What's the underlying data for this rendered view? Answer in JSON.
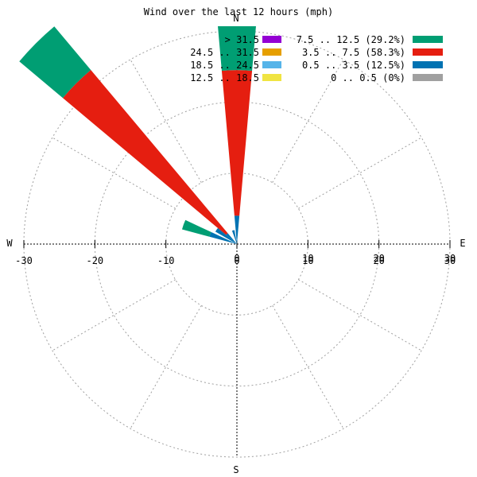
{
  "chart_data": {
    "type": "wind-rose",
    "title": "Wind over the last 12 hours (mph)",
    "compass": {
      "n": "N",
      "e": "E",
      "s": "S",
      "w": "W"
    },
    "r_max": 30,
    "rings": [
      10,
      20,
      30
    ],
    "x_ticks": [
      "-30",
      "-20",
      "-10",
      "0",
      "10",
      "20",
      "30"
    ],
    "x_tick_values": [
      -30,
      -20,
      -10,
      0,
      10,
      20,
      30
    ],
    "x_ticks_secondary": [
      "0",
      "10",
      "20",
      "30"
    ],
    "x_ticks_secondary_values": [
      0,
      10,
      20,
      30
    ],
    "sector_width_deg": 10,
    "legend": [
      {
        "label": "> 31.5",
        "color": "#9400d3"
      },
      {
        "label": "24.5 .. 31.5",
        "color": "#e69f00"
      },
      {
        "label": "18.5 .. 24.5",
        "color": "#56b4e9"
      },
      {
        "label": "12.5 .. 18.5",
        "color": "#f0e442"
      },
      {
        "label": "7.5 .. 12.5 (29.2%)",
        "color": "#009e73"
      },
      {
        "label": "3.5 .. 7.5 (58.3%)",
        "color": "#e51e10"
      },
      {
        "label": "0.5 .. 3.5 (12.5%)",
        "color": "#0072b2"
      },
      {
        "label": "0 .. 0.5 (0%)",
        "color": "#a0a0a0"
      }
    ],
    "petals": [
      {
        "direction_deg": 0,
        "segments": [
          {
            "bin": "0.5 .. 3.5",
            "r": 4.0
          },
          {
            "bin": "3.5 .. 7.5",
            "r": 24.5
          },
          {
            "bin": "7.5 .. 12.5",
            "r": 32.0
          }
        ]
      },
      {
        "direction_deg": 315,
        "segments": [
          {
            "bin": "0.5 .. 3.5",
            "r": 2.0
          },
          {
            "bin": "3.5 .. 7.5",
            "r": 32.0
          },
          {
            "bin": "7.5 .. 12.5",
            "r": 40.0
          }
        ]
      },
      {
        "direction_deg": 290,
        "segments": [
          {
            "bin": "0.5 .. 3.5",
            "r": 4.0
          },
          {
            "bin": "3.5 .. 7.5",
            "r": 4.0
          },
          {
            "bin": "7.5 .. 12.5",
            "r": 8.0
          }
        ]
      },
      {
        "direction_deg": 305,
        "segments": [
          {
            "bin": "0.5 .. 3.5",
            "r": 3.5
          }
        ]
      },
      {
        "direction_deg": 345,
        "segments": [
          {
            "bin": "0.5 .. 3.5",
            "r": 2.0
          }
        ]
      }
    ]
  }
}
